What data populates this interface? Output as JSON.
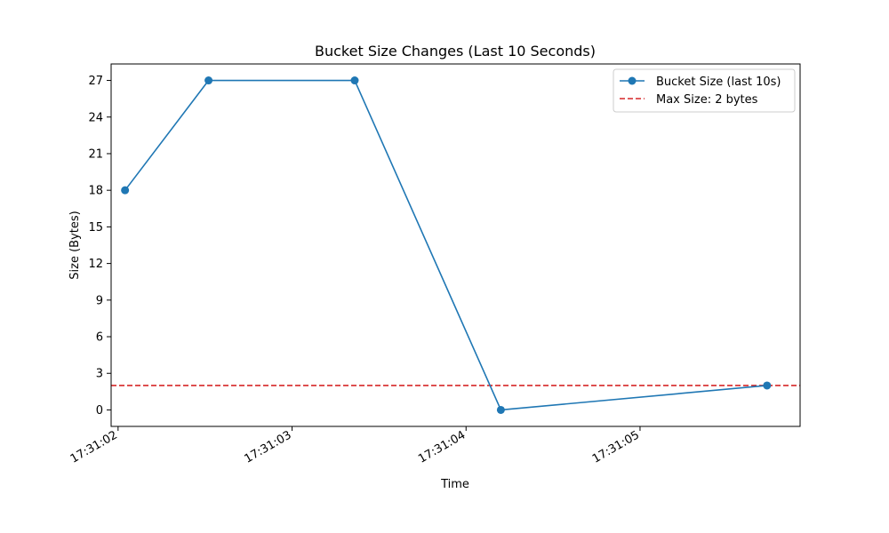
{
  "chart_data": {
    "type": "line",
    "title": "Bucket Size Changes (Last 10 Seconds)",
    "xlabel": "Time",
    "ylabel": "Size (Bytes)",
    "x_ticks": [
      "17:31:02",
      "17:31:03",
      "17:31:04",
      "17:31:05"
    ],
    "y_ticks": [
      0,
      3,
      6,
      9,
      12,
      15,
      18,
      21,
      24,
      27
    ],
    "xlim": [
      "17:31:01.96",
      "17:31:05.92"
    ],
    "ylim": [
      -1.35,
      28.35
    ],
    "series": [
      {
        "name": "Bucket Size (last 10s)",
        "color": "#1f77b4",
        "style": "solid-with-markers",
        "x": [
          "17:31:02.04",
          "17:31:02.52",
          "17:31:03.36",
          "17:31:04.20",
          "17:31:05.73"
        ],
        "y": [
          18,
          27,
          27,
          0,
          2
        ]
      }
    ],
    "reference_lines": [
      {
        "name": "Max Size: 2 bytes",
        "color": "#d62728",
        "style": "dashed",
        "y": 2
      }
    ],
    "legend_position": "top-right",
    "grid": false
  }
}
